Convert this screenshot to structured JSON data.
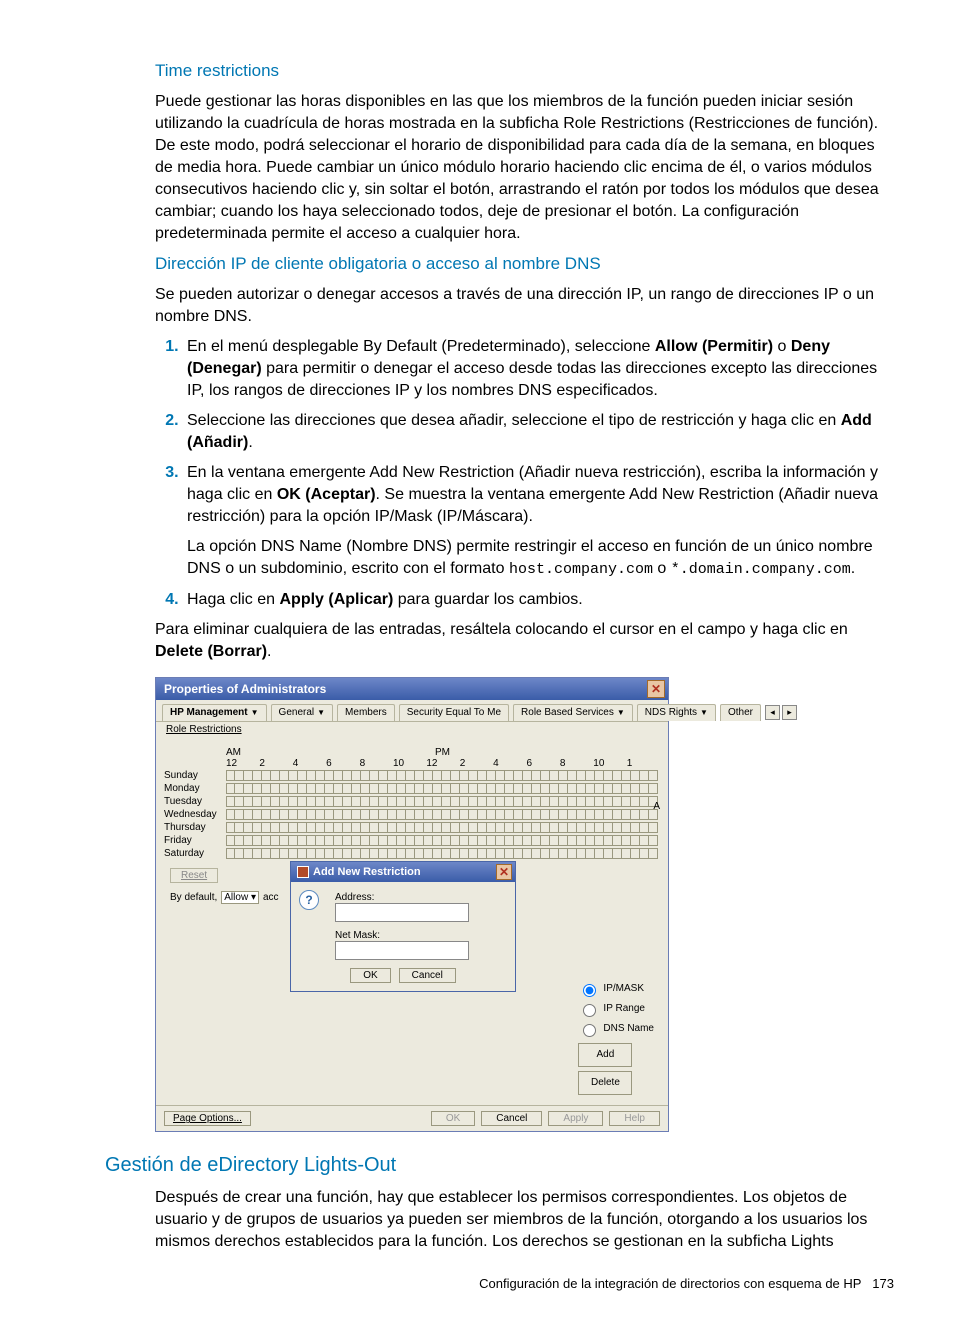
{
  "headings": {
    "time_restrictions": "Time restrictions",
    "ip_dns": "Dirección IP de cliente obligatoria o acceso al nombre DNS",
    "edirectory": "Gestión de eDirectory Lights-Out"
  },
  "para": {
    "tr": "Puede gestionar las horas disponibles en las que los miembros de la función pueden iniciar sesión utilizando la cuadrícula de horas mostrada en la subficha Role Restrictions (Restricciones de función). De este modo, podrá seleccionar el horario de disponibilidad para cada día de la semana, en bloques de media hora. Puede cambiar un único módulo horario haciendo clic encima de él, o varios módulos consecutivos haciendo clic y, sin soltar el botón, arrastrando el ratón por todos los módulos que desea cambiar; cuando los haya seleccionado todos, deje de presionar el botón. La configuración predeterminada permite el acceso a cualquier hora.",
    "ip_intro": "Se pueden autorizar o denegar accesos a través de una dirección IP, un rango de direcciones IP o un nombre DNS.",
    "s1_a": "En el menú desplegable By Default (Predeterminado), seleccione ",
    "s1_allow": "Allow (Permitir)",
    "s1_or": " o ",
    "s1_deny": "Deny (Denegar)",
    "s1_b": " para permitir o denegar el acceso desde todas las direcciones excepto las direcciones IP, los rangos de direcciones IP y los nombres DNS especificados.",
    "s2_a": "Seleccione las direcciones que desea añadir, seleccione el tipo de restricción y haga clic en ",
    "s2_add": "Add (Añadir)",
    "s2_b": ".",
    "s3_a": "En la ventana emergente Add New Restriction (Añadir nueva restricción), escriba la información y haga clic en ",
    "s3_ok": "OK (Aceptar)",
    "s3_b": ". Se muestra la ventana emergente Add New Restriction (Añadir nueva restricción) para la opción IP/Mask (IP/Máscara).",
    "s3_sub_a": "La opción DNS Name (Nombre DNS) permite restringir el acceso en función de un único nombre DNS o un subdominio, escrito con el formato ",
    "s3_host": "host.company.com",
    "s3_sub_or": " o ",
    "s3_wild": "*.domain.company.com",
    "s3_sub_b": ".",
    "s4_a": "Haga clic en ",
    "s4_apply": "Apply (Aplicar)",
    "s4_b": " para guardar los cambios.",
    "outro_a": "Para eliminar cualquiera de las entradas, resáltela colocando el cursor en el campo y haga clic en ",
    "outro_del": "Delete (Borrar)",
    "outro_b": ".",
    "edir": "Después de crear una función, hay que establecer los permisos correspondientes. Los objetos de usuario y de grupos de usuarios ya pueden ser miembros de la función, otorgando a los usuarios los mismos derechos establecidos para la función. Los derechos se gestionan en la subficha Lights"
  },
  "screenshot": {
    "title": "Properties of Administrators",
    "tabs": [
      "HP Management",
      "General",
      "Members",
      "Security Equal To Me",
      "Role Based Services",
      "NDS Rights",
      "Other"
    ],
    "subtab": "Role Restrictions",
    "ampm": {
      "am": "AM",
      "pm": "PM",
      "right": "A"
    },
    "hours": [
      "12",
      "2",
      "4",
      "6",
      "8",
      "10",
      "12",
      "2",
      "4",
      "6",
      "8",
      "10",
      "1"
    ],
    "days": [
      "Sunday",
      "Monday",
      "Tuesday",
      "Wednesday",
      "Thursday",
      "Friday",
      "Saturday"
    ],
    "reset": "Reset",
    "default_row": {
      "pre": "By default,",
      "sel": "Allow",
      "post": "acc"
    },
    "popup": {
      "title": "Add New Restriction",
      "address": "Address:",
      "netmask": "Net Mask:",
      "ok": "OK",
      "cancel": "Cancel"
    },
    "radios": {
      "ipmask": "IP/MASK",
      "iprange": "IP Range",
      "dnsname": "DNS Name"
    },
    "sidebtn": {
      "add": "Add",
      "delete": "Delete"
    },
    "footer": {
      "pageopt": "Page Options...",
      "ok": "OK",
      "cancel": "Cancel",
      "apply": "Apply",
      "help": "Help"
    }
  },
  "footer": {
    "text": "Configuración de la integración de directorios con esquema de HP",
    "page": "173"
  }
}
